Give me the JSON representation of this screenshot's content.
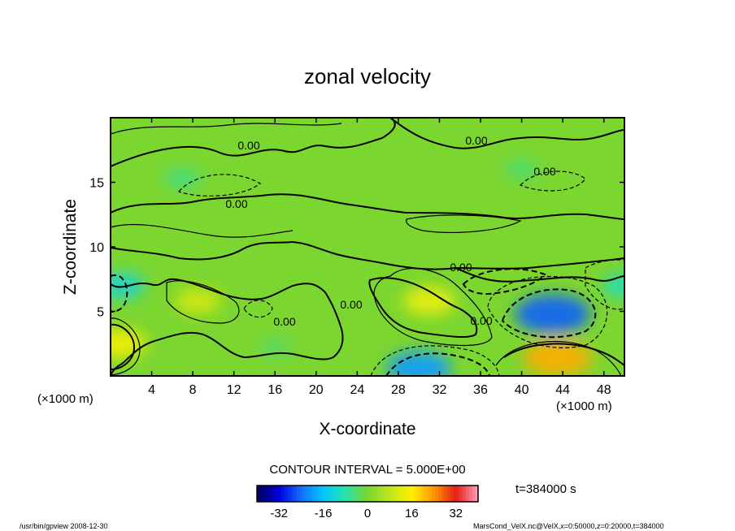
{
  "chart_data": {
    "type": "heatmap",
    "title": "zonal velocity",
    "xlabel": "X-coordinate",
    "ylabel": "Z-coordinate",
    "x_unit": "(×1000 m)",
    "x_unit_right": "(×1000 m)",
    "xlim": [
      0,
      50
    ],
    "ylim": [
      0,
      20
    ],
    "x_ticks": [
      4,
      8,
      12,
      16,
      20,
      24,
      28,
      32,
      36,
      40,
      44,
      48
    ],
    "y_ticks": [
      5,
      10,
      15
    ],
    "contour_interval": "CONTOUR INTERVAL = 5.000E+00",
    "contour_labels": [
      "0.00",
      "0.00",
      "0.00",
      "0.00",
      "0.00",
      "0.00",
      "0.00",
      "0.00"
    ],
    "colorbar": {
      "ticks": [
        -32,
        -16,
        0,
        16,
        32
      ],
      "range": [
        -40,
        40
      ]
    },
    "time_label": "t=384000 s",
    "footer_left": "/usr/bin/gpview   2008-12-30",
    "footer_right": "MarsCond_VelX.nc@VelX,x=0:50000,z=0:20000,t=384000",
    "features": [
      {
        "x": 43,
        "z": 4.8,
        "value": -25
      },
      {
        "x": 30,
        "z": 0.6,
        "value": -20
      },
      {
        "x": 1,
        "z": 7,
        "value": -12
      },
      {
        "x": 43.5,
        "z": 1.4,
        "value": 22
      },
      {
        "x": 31,
        "z": 5.8,
        "value": 14
      },
      {
        "x": 8.5,
        "z": 5.8,
        "value": 11
      },
      {
        "x": 0.8,
        "z": 2.5,
        "value": 15
      },
      {
        "x": 7,
        "z": 15.3,
        "value": -6
      },
      {
        "x": 40,
        "z": 16,
        "value": -5
      },
      {
        "x": 50,
        "z": 7,
        "value": -10
      },
      {
        "x": 16,
        "z": 2.2,
        "value": -4
      }
    ]
  }
}
